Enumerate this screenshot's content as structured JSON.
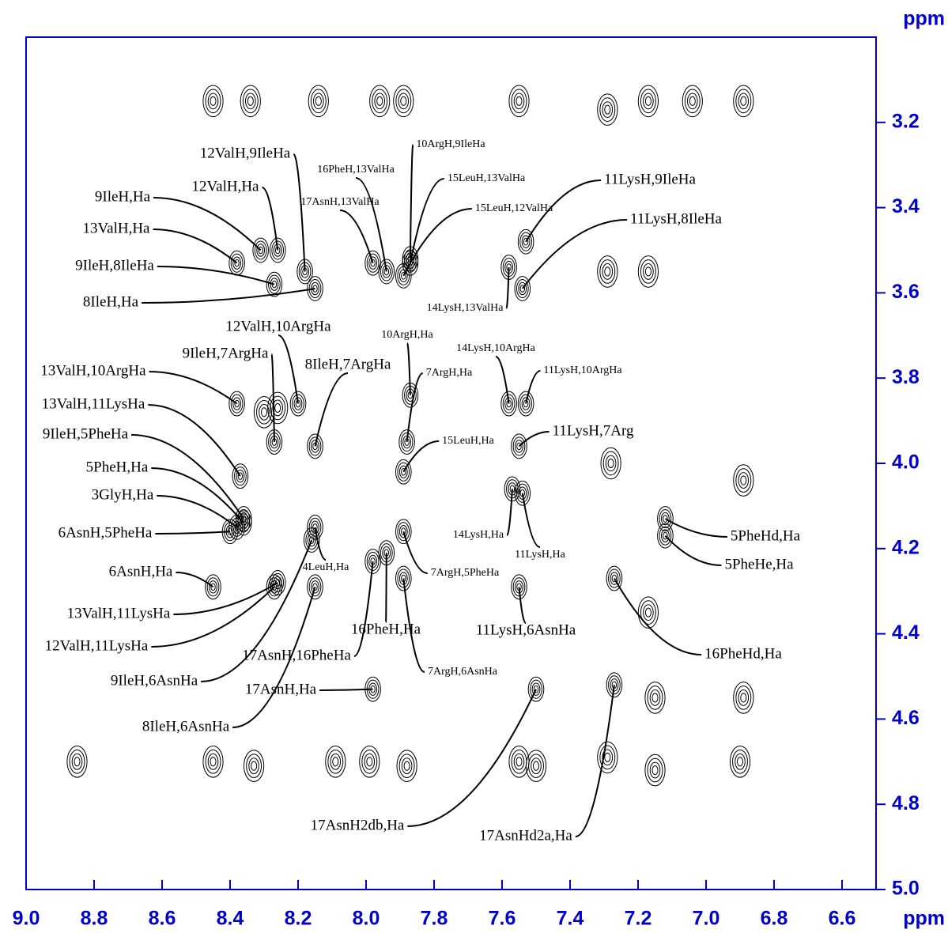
{
  "chart_data": {
    "type": "nmr-contour",
    "x_label": "ppm",
    "y_label": "ppm",
    "xlim": [
      9.0,
      6.5
    ],
    "ylim": [
      5.0,
      3.0
    ],
    "xticks": [
      {
        "value": 9.0,
        "label": "9.0"
      },
      8.8,
      8.6,
      8.4,
      8.2,
      {
        "value": 8.0,
        "label": "8.0"
      },
      7.8,
      7.6,
      7.4,
      7.2,
      {
        "value": 7.0,
        "label": "7.0"
      },
      6.8,
      6.6
    ],
    "yticks": [
      3.2,
      3.4,
      3.6,
      3.8,
      {
        "value": 4.0,
        "label": "4.0"
      },
      4.2,
      4.4,
      4.6,
      4.8,
      {
        "value": 5.0,
        "label": "5.0"
      }
    ],
    "axis_color": "#0000cc",
    "color": "#000000",
    "peaks": {
      "x": [
        8.45,
        8.34,
        8.14,
        7.96,
        7.89,
        7.55,
        7.29,
        7.17,
        7.04,
        6.89,
        7.29,
        7.17,
        8.85,
        8.45,
        8.33,
        8.09,
        7.99,
        7.88,
        7.55,
        7.5,
        7.29,
        7.15,
        6.9,
        7.28,
        6.89,
        6.89,
        7.15,
        7.17,
        8.3,
        8.26
      ],
      "y": [
        3.15,
        3.15,
        3.15,
        3.15,
        3.15,
        3.15,
        3.17,
        3.15,
        3.15,
        3.15,
        3.55,
        3.55,
        4.7,
        4.7,
        4.71,
        4.7,
        4.7,
        4.71,
        4.7,
        4.71,
        4.69,
        4.72,
        4.7,
        4.0,
        4.04,
        4.55,
        4.55,
        4.35,
        3.88,
        3.87
      ]
    },
    "annotations": [
      {
        "text": "12ValH,9IleHa",
        "x": 8.18,
        "y": 3.55
      },
      {
        "text": "12ValH,Ha",
        "x": 8.26,
        "y": 3.5
      },
      {
        "text": "9IleH,Ha",
        "x": 8.31,
        "y": 3.5
      },
      {
        "text": "13ValH,Ha",
        "x": 8.38,
        "y": 3.53
      },
      {
        "text": "9IleH,8IleHa",
        "x": 8.27,
        "y": 3.58
      },
      {
        "text": "8IleH,Ha",
        "x": 8.15,
        "y": 3.59
      },
      {
        "text": "10ArgH,9IleHa",
        "x": 7.87,
        "y": 3.52
      },
      {
        "text": "16PheH,13ValHa",
        "x": 7.94,
        "y": 3.55
      },
      {
        "text": "15LeuH,13ValHa",
        "x": 7.87,
        "y": 3.53
      },
      {
        "text": "17AsnH,13ValHa",
        "x": 7.98,
        "y": 3.53
      },
      {
        "text": "15LeuH,12ValHa",
        "x": 7.89,
        "y": 3.56
      },
      {
        "text": "11LysH,9IleHa",
        "x": 7.53,
        "y": 3.48
      },
      {
        "text": "11LysH,8IleHa",
        "x": 7.54,
        "y": 3.59
      },
      {
        "text": "14LysH,13ValHa",
        "x": 7.58,
        "y": 3.54
      },
      {
        "text": "12ValH,10ArgHa",
        "x": 8.2,
        "y": 3.86
      },
      {
        "text": "10ArgH,Ha",
        "x": 7.87,
        "y": 3.84
      },
      {
        "text": "9IleH,7ArgHa",
        "x": 8.27,
        "y": 3.95
      },
      {
        "text": "8IleH,7ArgHa",
        "x": 8.15,
        "y": 3.96
      },
      {
        "text": "14LysH,10ArgHa",
        "x": 7.58,
        "y": 3.86
      },
      {
        "text": "7ArgH,Ha",
        "x": 7.88,
        "y": 3.95
      },
      {
        "text": "11LysH,10ArgHa",
        "x": 7.53,
        "y": 3.86
      },
      {
        "text": "13ValH,10ArgHa",
        "x": 8.38,
        "y": 3.86
      },
      {
        "text": "13ValH,11LysHa",
        "x": 8.37,
        "y": 4.03
      },
      {
        "text": "11LysH,7Arg",
        "x": 7.55,
        "y": 3.96
      },
      {
        "text": "9IleH,5PheHa",
        "x": 8.36,
        "y": 4.13
      },
      {
        "text": "15LeuH,Ha",
        "x": 7.89,
        "y": 4.02
      },
      {
        "text": "5PheH,Ha",
        "x": 8.36,
        "y": 4.14
      },
      {
        "text": "3GlyH,Ha",
        "x": 8.38,
        "y": 4.15
      },
      {
        "text": "6AsnH,5PheHa",
        "x": 8.4,
        "y": 4.16
      },
      {
        "text": "14LysH,Ha",
        "x": 7.57,
        "y": 4.06
      },
      {
        "text": "5PheHd,Ha",
        "x": 7.12,
        "y": 4.13
      },
      {
        "text": "4LeuH,Ha",
        "x": 8.15,
        "y": 4.15
      },
      {
        "text": "11LysH,Ha",
        "x": 7.54,
        "y": 4.07
      },
      {
        "text": "7ArgH,5PheHa",
        "x": 7.89,
        "y": 4.16
      },
      {
        "text": "5PheHe,Ha",
        "x": 7.12,
        "y": 4.17
      },
      {
        "text": "6AsnH,Ha",
        "x": 8.45,
        "y": 4.29
      },
      {
        "text": "13ValH,11LysHa",
        "x": 8.26,
        "y": 4.28
      },
      {
        "text": "16PheH,Ha",
        "x": 7.94,
        "y": 4.21
      },
      {
        "text": "11LysH,6AsnHa",
        "x": 7.55,
        "y": 4.29
      },
      {
        "text": "12ValH,11LysHa",
        "x": 8.27,
        "y": 4.29
      },
      {
        "text": "16PheHd,Ha",
        "x": 7.27,
        "y": 4.27
      },
      {
        "text": "17AsnH,16PheHa",
        "x": 7.98,
        "y": 4.23
      },
      {
        "text": "7ArgH,6AsnHa",
        "x": 7.89,
        "y": 4.27
      },
      {
        "text": "9IleH,6AsnHa",
        "x": 8.16,
        "y": 4.18
      },
      {
        "text": "17AsnH,Ha",
        "x": 7.98,
        "y": 4.53
      },
      {
        "text": "8IleH,6AsnHa",
        "x": 8.15,
        "y": 4.29
      },
      {
        "text": "17AsnH2db,Ha",
        "x": 7.5,
        "y": 4.53
      },
      {
        "text": "17AsnHd2a,Ha",
        "x": 7.27,
        "y": 4.52
      }
    ]
  }
}
